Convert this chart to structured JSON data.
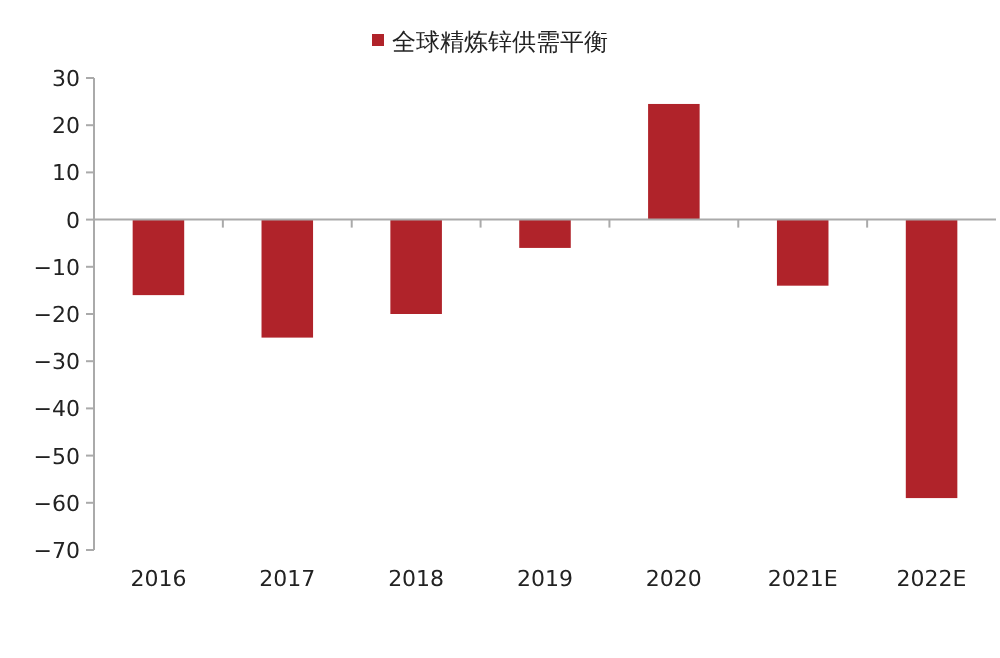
{
  "chart_data": {
    "type": "bar",
    "categories": [
      "2016",
      "2017",
      "2018",
      "2019",
      "2020",
      "2021E",
      "2022E"
    ],
    "series": [
      {
        "name": "全球精炼锌供需平衡",
        "color": "#b0232a",
        "values": [
          -16,
          -25,
          -20,
          -6,
          24.5,
          -14,
          -59
        ]
      }
    ],
    "ylim": [
      -70,
      30
    ],
    "yticks": [
      -70,
      -60,
      -50,
      -40,
      -30,
      -20,
      -10,
      0,
      10,
      20,
      30
    ],
    "legend": "top"
  }
}
